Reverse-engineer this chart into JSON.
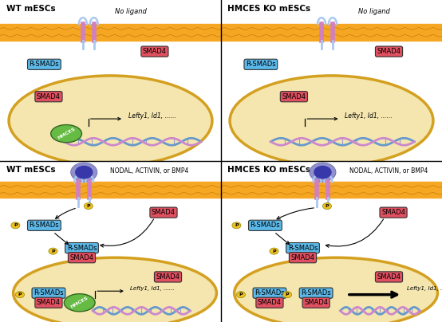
{
  "fig_width": 5.54,
  "fig_height": 4.04,
  "dpi": 100,
  "background": "#ffffff",
  "smad4_color": "#e05060",
  "rsmad_color": "#5bb8e8",
  "hmces_color": "#66bb44",
  "membrane_color": "#f5a623",
  "nucleus_color": "#f5e6b0",
  "nucleus_border": "#d4a020",
  "ligand_text": "No ligand",
  "activin_text": "NODAL, ACTIVIN, or BMP4",
  "gene_text": "Lefty1, Id1, ......",
  "p_color": "#f0c020",
  "receptor_top_color": "#aac8f0",
  "receptor_mid_color": "#d080c0",
  "ligand_outer_color": "#8888cc",
  "ligand_inner_color": "#4444aa"
}
